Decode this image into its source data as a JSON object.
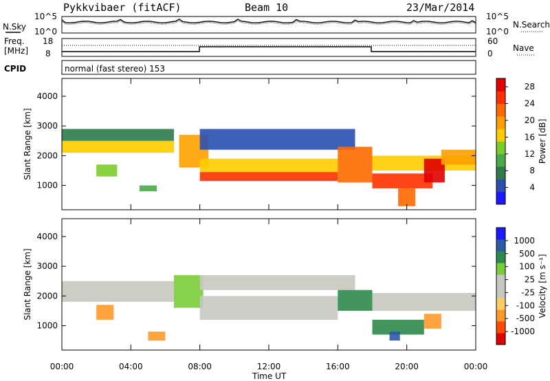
{
  "header": {
    "title": "Pykkvibaer (fitACF)",
    "beam": "Beam 10",
    "date": "23/Mar/2014"
  },
  "noise_panel": {
    "left_label": "N.Sky",
    "right_label": "N.Search",
    "axis_top": "10^5",
    "axis_bottom": "10^0",
    "right_axis_top": "10^5",
    "right_axis_bottom": "10^0"
  },
  "freq_panel": {
    "left_label_1": "Freq.",
    "left_label_2": "[MHz]",
    "left_ticks": [
      "18",
      "8"
    ],
    "right_ticks": [
      "60",
      "0"
    ],
    "right_label": "Nave"
  },
  "cpid": {
    "label": "CPID",
    "value": "normal (fast stereo) 153"
  },
  "x_axis": {
    "label": "Time UT",
    "ticks": [
      "00:00",
      "04:00",
      "08:00",
      "12:00",
      "16:00",
      "20:00",
      "00:00"
    ]
  },
  "colors": {
    "power_scale": [
      "#1a1aff",
      "#2a4fb0",
      "#2e7a4a",
      "#4aaa4a",
      "#7acc2a",
      "#ffcc00",
      "#ffa000",
      "#ff6a00",
      "#ff3000",
      "#e00000"
    ],
    "velocity_scale": [
      "#e00000",
      "#ff4a00",
      "#ff9a2a",
      "#ffcc66",
      "#c8c8c0",
      "#c8c8c0",
      "#7acc3a",
      "#2e8a4a",
      "#2a5aaa",
      "#1a1aff"
    ]
  },
  "chart_data": [
    {
      "type": "heatmap",
      "panel": "power",
      "ylabel": "Slant Range [km]",
      "xlabel": "Time UT",
      "x_ticks": [
        "00:00",
        "04:00",
        "08:00",
        "12:00",
        "16:00",
        "20:00",
        "00:00"
      ],
      "y_ticks": [
        "1000",
        "2000",
        "3000",
        "4000"
      ],
      "xlim": [
        0,
        24
      ],
      "ylim": [
        180,
        4600
      ],
      "colorbar": {
        "label": "Power [dB]",
        "ticks": [
          "4",
          "8",
          "12",
          "16",
          "20",
          "24",
          "28"
        ],
        "range": [
          0,
          30
        ]
      },
      "regions": [
        {
          "t0": 0.0,
          "t1": 6.5,
          "r0": 2100,
          "r1": 2500,
          "value": 17
        },
        {
          "t0": 0.0,
          "t1": 6.5,
          "r0": 2500,
          "r1": 2900,
          "value": 6
        },
        {
          "t0": 2.0,
          "t1": 3.2,
          "r0": 1300,
          "r1": 1700,
          "value": 14
        },
        {
          "t0": 6.8,
          "t1": 8.5,
          "r0": 1600,
          "r1": 2700,
          "value": 20
        },
        {
          "t0": 8.0,
          "t1": 16.0,
          "r0": 1150,
          "r1": 1450,
          "value": 26
        },
        {
          "t0": 8.0,
          "t1": 16.0,
          "r0": 1450,
          "r1": 1900,
          "value": 17
        },
        {
          "t0": 8.0,
          "t1": 17.0,
          "r0": 2200,
          "r1": 2900,
          "value": 5
        },
        {
          "t0": 16.0,
          "t1": 18.0,
          "r0": 1100,
          "r1": 2300,
          "value": 22
        },
        {
          "t0": 18.0,
          "t1": 21.5,
          "r0": 900,
          "r1": 1400,
          "value": 24
        },
        {
          "t0": 18.0,
          "t1": 24.0,
          "r0": 1500,
          "r1": 2000,
          "value": 15
        },
        {
          "t0": 21.0,
          "t1": 22.2,
          "r0": 1100,
          "r1": 1900,
          "value": 27
        },
        {
          "t0": 22.0,
          "t1": 24.0,
          "r0": 1700,
          "r1": 2200,
          "value": 18
        },
        {
          "t0": 19.5,
          "t1": 20.5,
          "r0": 300,
          "r1": 900,
          "value": 22
        },
        {
          "t0": 4.5,
          "t1": 5.5,
          "r0": 800,
          "r1": 1000,
          "value": 10
        }
      ]
    },
    {
      "type": "heatmap",
      "panel": "velocity",
      "ylabel": "Slant Range [km]",
      "xlabel": "Time UT",
      "x_ticks": [
        "00:00",
        "04:00",
        "08:00",
        "12:00",
        "16:00",
        "20:00",
        "00:00"
      ],
      "y_ticks": [
        "1000",
        "2000",
        "3000",
        "4000"
      ],
      "xlim": [
        0,
        24
      ],
      "ylim": [
        180,
        4600
      ],
      "colorbar": {
        "label": "Velocity [m s⁻¹]",
        "ticks": [
          "-1000",
          "-500",
          "-100",
          "-25",
          "25",
          "100",
          "500",
          "1000"
        ]
      },
      "regions": [
        {
          "t0": 0.0,
          "t1": 6.5,
          "r0": 1800,
          "r1": 2500,
          "value": 0
        },
        {
          "t0": 6.5,
          "t1": 8.2,
          "r0": 1600,
          "r1": 2700,
          "value": 60
        },
        {
          "t0": 8.0,
          "t1": 16.0,
          "r0": 1200,
          "r1": 2000,
          "value": 0
        },
        {
          "t0": 8.0,
          "t1": 17.0,
          "r0": 2200,
          "r1": 2700,
          "value": 0
        },
        {
          "t0": 16.0,
          "t1": 18.0,
          "r0": 1500,
          "r1": 2200,
          "value": 400
        },
        {
          "t0": 18.0,
          "t1": 24.0,
          "r0": 1500,
          "r1": 2100,
          "value": 0
        },
        {
          "t0": 18.0,
          "t1": 21.0,
          "r0": 700,
          "r1": 1200,
          "value": 300
        },
        {
          "t0": 2.0,
          "t1": 3.0,
          "r0": 1200,
          "r1": 1700,
          "value": -400
        },
        {
          "t0": 5.0,
          "t1": 6.0,
          "r0": 500,
          "r1": 800,
          "value": -300
        },
        {
          "t0": 21.0,
          "t1": 22.0,
          "r0": 900,
          "r1": 1400,
          "value": -400
        },
        {
          "t0": 19.0,
          "t1": 19.6,
          "r0": 500,
          "r1": 800,
          "value": 1000
        }
      ]
    }
  ]
}
